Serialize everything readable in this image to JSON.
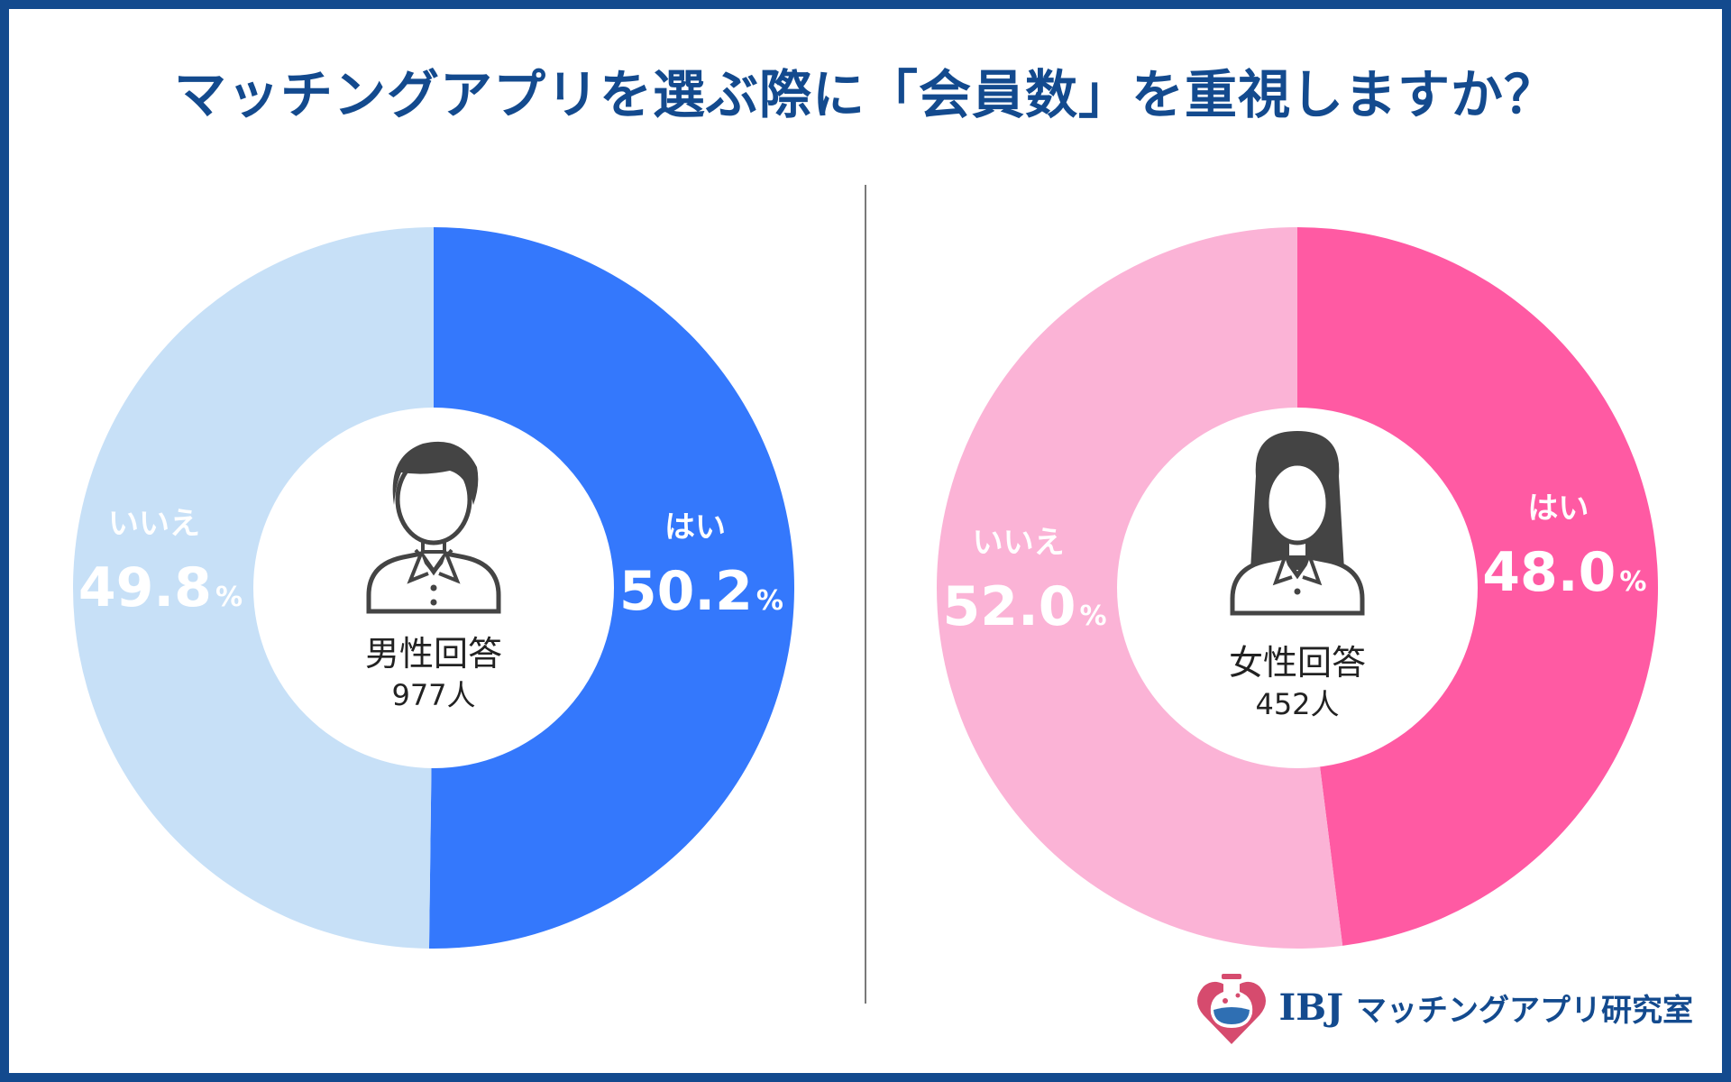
{
  "title": "マッチングアプリを選ぶ際に「会員数」を重視しますか？",
  "colors": {
    "frame": "#134a8e",
    "male_yes": "#3478fc",
    "male_no": "#c7e0f7",
    "female_yes": "#ff5aa3",
    "female_no": "#fbb3d6"
  },
  "chart_data": [
    {
      "type": "pie",
      "title": "男性回答",
      "subtitle": "977人",
      "categories": [
        "はい",
        "いいえ"
      ],
      "values": [
        50.2,
        49.8
      ],
      "value_labels": [
        "50.2",
        "49.8"
      ],
      "unit": "%"
    },
    {
      "type": "pie",
      "title": "女性回答",
      "subtitle": "452人",
      "categories": [
        "はい",
        "いいえ"
      ],
      "values": [
        48.0,
        52.0
      ],
      "value_labels": [
        "48.0",
        "52.0"
      ],
      "unit": "%"
    }
  ],
  "footer": {
    "brand": "IBJ",
    "name": "マッチングアプリ研究室"
  },
  "icons": [
    "male-user-icon",
    "female-user-icon",
    "logo-heart-flask-icon"
  ]
}
